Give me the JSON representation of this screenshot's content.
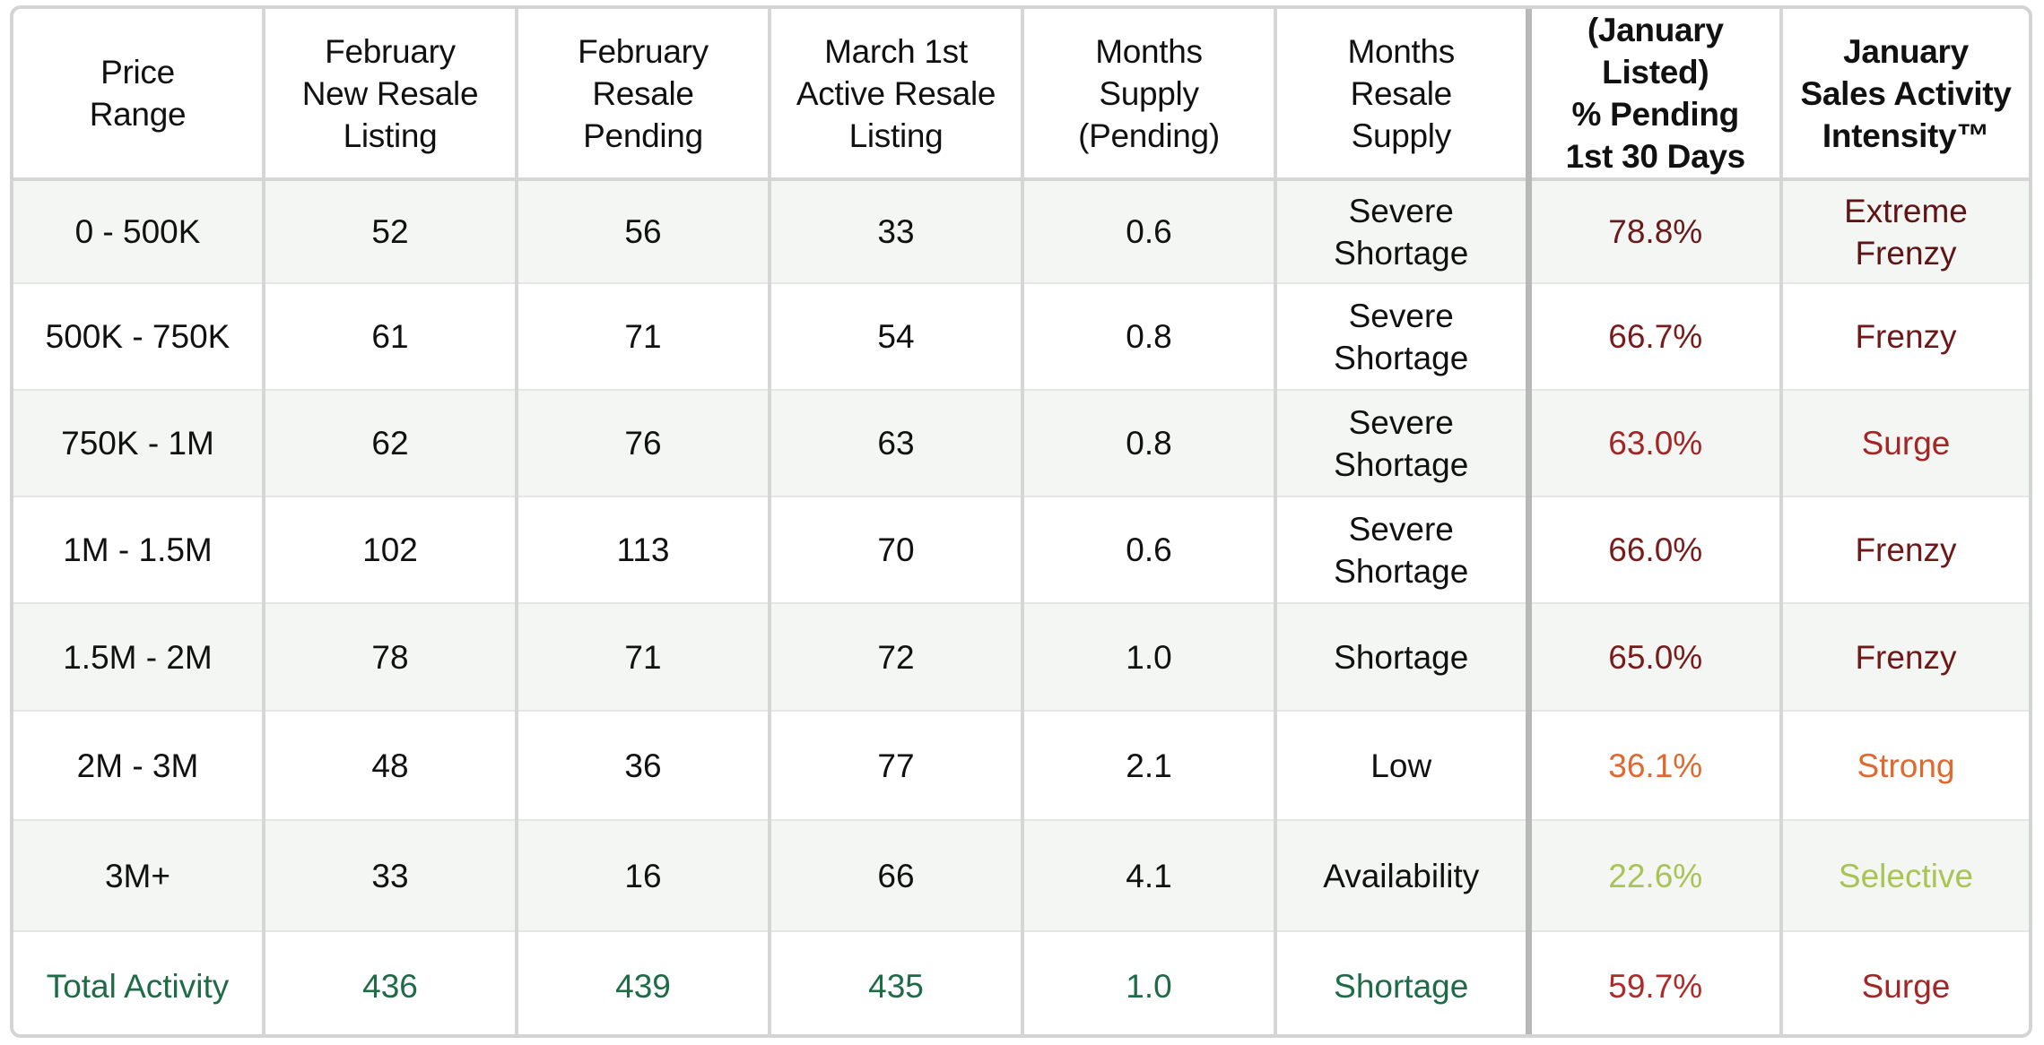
{
  "colors": {
    "frenzy_dark": "#5e1414",
    "frenzy": "#6e1818",
    "surge": "#a32525",
    "strong": "#e0692f",
    "selective": "#a9c455",
    "total_green": "#1e6b47",
    "total_pct": "#b12a2a"
  },
  "headers": [
    "Price\nRange",
    "February\nNew Resale\nListing",
    "February\nResale\nPending",
    "March 1st\nActive Resale\nListing",
    "Months\nSupply\n(Pending)",
    "Months\nResale\nSupply",
    "(January Listed)\n% Pending\n1st 30 Days",
    "January\nSales Activity\nIntensity™"
  ],
  "rows": [
    {
      "range": "0 - 500K",
      "new_listing": "52",
      "pending": "56",
      "active": "33",
      "supply_pending": "0.6",
      "resale_supply": "Severe\nShortage",
      "pct_pending": "78.8%",
      "intensity": "Extreme\nFrenzy",
      "pct_color": "#6a1a1a",
      "intensity_color": "#5e1414"
    },
    {
      "range": "500K - 750K",
      "new_listing": "61",
      "pending": "71",
      "active": "54",
      "supply_pending": "0.8",
      "resale_supply": "Severe\nShortage",
      "pct_pending": "66.7%",
      "intensity": "Frenzy",
      "pct_color": "#7a1b1b",
      "intensity_color": "#6e1818"
    },
    {
      "range": "750K - 1M",
      "new_listing": "62",
      "pending": "76",
      "active": "63",
      "supply_pending": "0.8",
      "resale_supply": "Severe\nShortage",
      "pct_pending": "63.0%",
      "intensity": "Surge",
      "pct_color": "#a32525",
      "intensity_color": "#a32525"
    },
    {
      "range": "1M - 1.5M",
      "new_listing": "102",
      "pending": "113",
      "active": "70",
      "supply_pending": "0.6",
      "resale_supply": "Severe\nShortage",
      "pct_pending": "66.0%",
      "intensity": "Frenzy",
      "pct_color": "#7a1b1b",
      "intensity_color": "#6e1818"
    },
    {
      "range": "1.5M - 2M",
      "new_listing": "78",
      "pending": "71",
      "active": "72",
      "supply_pending": "1.0",
      "resale_supply": "Shortage",
      "pct_pending": "65.0%",
      "intensity": "Frenzy",
      "pct_color": "#7a1b1b",
      "intensity_color": "#6e1818"
    },
    {
      "range": "2M - 3M",
      "new_listing": "48",
      "pending": "36",
      "active": "77",
      "supply_pending": "2.1",
      "resale_supply": "Low",
      "pct_pending": "36.1%",
      "intensity": "Strong",
      "pct_color": "#e0692f",
      "intensity_color": "#e0692f"
    },
    {
      "range": "3M+",
      "new_listing": "33",
      "pending": "16",
      "active": "66",
      "supply_pending": "4.1",
      "resale_supply": "Availability",
      "pct_pending": "22.6%",
      "intensity": "Selective",
      "pct_color": "#a9c455",
      "intensity_color": "#a9c455"
    }
  ],
  "total": {
    "range": "Total Activity",
    "new_listing": "436",
    "pending": "439",
    "active": "435",
    "supply_pending": "1.0",
    "resale_supply": "Shortage",
    "pct_pending": "59.7%",
    "intensity": "Surge",
    "green": "#1e6b47",
    "pct_color": "#b12a2a",
    "intensity_color": "#a32525"
  }
}
